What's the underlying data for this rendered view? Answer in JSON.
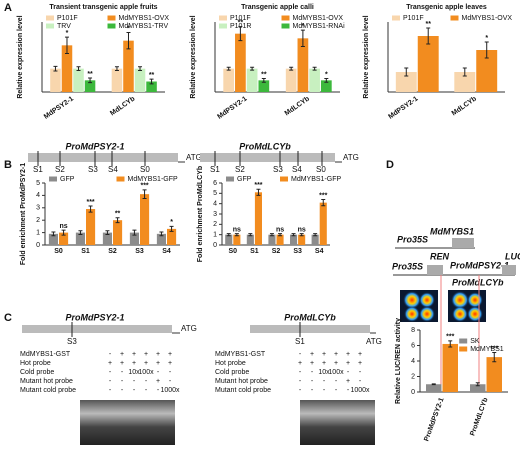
{
  "panel_labels": [
    "A",
    "B",
    "C",
    "D"
  ],
  "chart_data": [
    {
      "type": "bar",
      "title": "Transient transgenic apple  fruits",
      "y_label": "Relative expression level",
      "categories": [
        "MdPSY2-1",
        "MdLCYb"
      ],
      "ylim": [
        0,
        3
      ],
      "legend_columns": 2,
      "series": [
        {
          "name": "P101F",
          "color": "#f8d6ad",
          "values": [
            1.0,
            1.0
          ],
          "errors": [
            0.1,
            0.08
          ],
          "significance": [
            null,
            null
          ]
        },
        {
          "name": "MdMYBS1-OVX",
          "color": "#f28c1f",
          "values": [
            2.0,
            2.2
          ],
          "errors": [
            0.35,
            0.35
          ],
          "significance": [
            "*",
            "*"
          ]
        },
        {
          "name": "TRV",
          "color": "#c8f0c0",
          "values": [
            1.0,
            1.0
          ],
          "errors": [
            0.08,
            0.08
          ],
          "significance": [
            null,
            null
          ]
        },
        {
          "name": "MdMYBS1-TRV",
          "color": "#3cb83c",
          "values": [
            0.5,
            0.45
          ],
          "errors": [
            0.1,
            0.1
          ],
          "significance": [
            "**",
            "**"
          ]
        }
      ]
    },
    {
      "type": "bar",
      "title": "Transgenic apple calli",
      "y_label": "Relative expression level",
      "categories": [
        "MdPSY2-1",
        "MdLCYb"
      ],
      "ylim": [
        0,
        3
      ],
      "legend_columns": 2,
      "series": [
        {
          "name": "P101F",
          "color": "#f8d6ad",
          "values": [
            1.0,
            1.0
          ],
          "errors": [
            0.06,
            0.06
          ],
          "significance": [
            null,
            null
          ]
        },
        {
          "name": "MdMYBS1-OVX",
          "color": "#f28c1f",
          "values": [
            2.5,
            2.3
          ],
          "errors": [
            0.3,
            0.35
          ],
          "significance": [
            "**",
            "*"
          ]
        },
        {
          "name": "P101R",
          "color": "#c8f0c0",
          "values": [
            1.0,
            1.0
          ],
          "errors": [
            0.06,
            0.06
          ],
          "significance": [
            null,
            null
          ]
        },
        {
          "name": "MdMYBS1-RNAi",
          "color": "#3cb83c",
          "values": [
            0.5,
            0.5
          ],
          "errors": [
            0.08,
            0.08
          ],
          "significance": [
            "**",
            "*"
          ]
        }
      ]
    },
    {
      "type": "bar",
      "title": "Transgenic apple leaves",
      "y_label": "Relative expression level",
      "categories": [
        "MdPSY2-1",
        "MdLCYb"
      ],
      "ylim": [
        0,
        3.5
      ],
      "legend_columns": 2,
      "series": [
        {
          "name": "P101F",
          "color": "#f8d6ad",
          "values": [
            1.0,
            1.0
          ],
          "errors": [
            0.2,
            0.2
          ],
          "significance": [
            null,
            null
          ]
        },
        {
          "name": "MdMYBS1-OVX",
          "color": "#f28c1f",
          "values": [
            2.8,
            2.1
          ],
          "errors": [
            0.4,
            0.4
          ],
          "significance": [
            "**",
            "*"
          ]
        }
      ]
    },
    {
      "type": "bar",
      "y_label": "Fold enrichment ProMdPSY2-1",
      "categories": [
        "S0",
        "S1",
        "S2",
        "S3",
        "S4"
      ],
      "ylim": [
        0,
        5
      ],
      "yticks": [
        0,
        1,
        2,
        3,
        4,
        5
      ],
      "legend_columns": 2,
      "series": [
        {
          "name": "GFP",
          "color": "#8c8c8c",
          "values": [
            0.9,
            1.0,
            1.0,
            1.0,
            0.9
          ],
          "errors": [
            0.15,
            0.15,
            0.15,
            0.2,
            0.15
          ],
          "significance": [
            null,
            null,
            null,
            null,
            null
          ]
        },
        {
          "name": "MdMYBS1-GFP",
          "color": "#f28c1f",
          "values": [
            1.0,
            2.9,
            2.0,
            4.1,
            1.3
          ],
          "errors": [
            0.2,
            0.25,
            0.2,
            0.35,
            0.2
          ],
          "significance": [
            "ns",
            "***",
            "**",
            "***",
            "*"
          ]
        }
      ]
    },
    {
      "type": "bar",
      "y_label": "Fold enrichment ProMdLCYb",
      "categories": [
        "S0",
        "S1",
        "S2",
        "S3",
        "S4"
      ],
      "ylim": [
        0,
        6
      ],
      "yticks": [
        0,
        1,
        2,
        3,
        4,
        5,
        6
      ],
      "legend_columns": 2,
      "series": [
        {
          "name": "GFP",
          "color": "#8c8c8c",
          "values": [
            1.0,
            1.0,
            1.0,
            1.0,
            1.0
          ],
          "errors": [
            0.1,
            0.1,
            0.1,
            0.1,
            0.1
          ],
          "significance": [
            null,
            null,
            null,
            null,
            null
          ]
        },
        {
          "name": "MdMYBS1-GFP",
          "color": "#f28c1f",
          "values": [
            1.0,
            5.1,
            1.0,
            1.0,
            4.1
          ],
          "errors": [
            0.1,
            0.3,
            0.1,
            0.1,
            0.3
          ],
          "significance": [
            "ns",
            "***",
            "ns",
            "ns",
            "***"
          ]
        }
      ]
    },
    {
      "type": "bar",
      "y_label": "Relative LUC/REN activity",
      "categories": [
        "ProMdPSY2-1",
        "ProMdLCYb"
      ],
      "ylim": [
        0,
        8
      ],
      "yticks": [
        0,
        2,
        4,
        6,
        8
      ],
      "legend_columns": 1,
      "series": [
        {
          "name": "SK",
          "color": "#8c8c8c",
          "values": [
            1.0,
            1.0
          ],
          "errors": [
            0.05,
            0.2
          ],
          "significance": [
            null,
            null
          ]
        },
        {
          "name": "MdMYBS1",
          "color": "#f28c1f",
          "values": [
            6.2,
            4.5
          ],
          "errors": [
            0.4,
            0.6
          ],
          "significance": [
            "***",
            "***"
          ]
        }
      ]
    }
  ],
  "promoter_diagrams": [
    {
      "title": "ProMdPSY2-1",
      "atg": "ATG",
      "sites": [
        "S1",
        "S2",
        "S3",
        "S4",
        "S0"
      ]
    },
    {
      "title": "ProMdLCYb",
      "atg": "ATG",
      "sites": [
        "S1",
        "S2",
        "S3",
        "S4",
        "S0"
      ]
    }
  ],
  "emsa": [
    {
      "title": "ProMdPSY2-1",
      "atg": "ATG",
      "site": "S3",
      "rows": [
        {
          "label": "MdMYBS1-GST",
          "marks": [
            "-",
            "+",
            "+",
            "+",
            "+",
            "+"
          ]
        },
        {
          "label": "Hot probe",
          "marks": [
            "+",
            "+",
            "+",
            "+",
            "+",
            "+"
          ]
        },
        {
          "label": "Cold probe",
          "marks": [
            "-",
            "-",
            "10x",
            "100x",
            "-",
            "-"
          ]
        },
        {
          "label": "Mutant hot probe",
          "marks": [
            "-",
            "-",
            "-",
            "-",
            "+",
            "-"
          ]
        },
        {
          "label": "Mutant cold probe",
          "marks": [
            "-",
            "-",
            "-",
            "-",
            "-",
            "1000x"
          ]
        }
      ]
    },
    {
      "title": "ProMdLCYb",
      "atg": "ATG",
      "site": "S1",
      "rows": [
        {
          "label": "MdMYBS1-GST",
          "marks": [
            "-",
            "+",
            "+",
            "+",
            "+",
            "+"
          ]
        },
        {
          "label": "Hot probe",
          "marks": [
            "+",
            "+",
            "+",
            "+",
            "+",
            "+"
          ]
        },
        {
          "label": "Cold probe",
          "marks": [
            "-",
            "-",
            "10x",
            "100x",
            "-",
            "-"
          ]
        },
        {
          "label": "Mutant hot probe",
          "marks": [
            "-",
            "-",
            "-",
            "-",
            "+",
            "-"
          ]
        },
        {
          "label": "Mutant cold probe",
          "marks": [
            "-",
            "-",
            "-",
            "-",
            "-",
            "1000x"
          ]
        }
      ]
    }
  ],
  "luc_constructs": {
    "effector_promoter": "Pro35S",
    "effector": "MdMYBS1",
    "reporter_promoter": "Pro35S",
    "ren": "REN",
    "targets": [
      "ProMdPSY2-1",
      "ProMdLCYb"
    ],
    "luc": "LUC"
  }
}
